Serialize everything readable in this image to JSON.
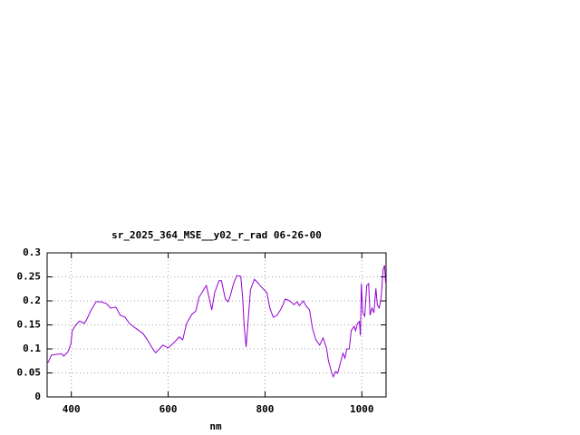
{
  "chart_data": {
    "type": "line",
    "title": "sr_2025_364_MSE__y02_r_rad 06-26-00",
    "x_label": "nm",
    "x": [
      350,
      352,
      359,
      380,
      384,
      393,
      399,
      402,
      410,
      417,
      427,
      432,
      440,
      451,
      462,
      473,
      481,
      492,
      501,
      511,
      520,
      533,
      548,
      557,
      567,
      574,
      582,
      589,
      600,
      612,
      623,
      630,
      638,
      649,
      657,
      664,
      675,
      679,
      685,
      690,
      696,
      705,
      710,
      718,
      724,
      729,
      735,
      742,
      750,
      754,
      757,
      761,
      765,
      770,
      778,
      785,
      795,
      804,
      810,
      817,
      825,
      834,
      842,
      851,
      860,
      866,
      871,
      879,
      885,
      892,
      898,
      905,
      913,
      920,
      927,
      931,
      937,
      941,
      946,
      950,
      956,
      961,
      965,
      969,
      974,
      978,
      984,
      987,
      991,
      995,
      997,
      999,
      1002,
      1006,
      1010,
      1014,
      1017,
      1021,
      1025,
      1029,
      1032,
      1036,
      1040,
      1044,
      1047,
      1049
    ],
    "values": [
      0.07,
      0.072,
      0.087,
      0.09,
      0.085,
      0.094,
      0.11,
      0.138,
      0.151,
      0.158,
      0.153,
      0.162,
      0.179,
      0.198,
      0.198,
      0.194,
      0.185,
      0.187,
      0.17,
      0.166,
      0.153,
      0.143,
      0.132,
      0.119,
      0.102,
      0.092,
      0.1,
      0.108,
      0.102,
      0.113,
      0.125,
      0.119,
      0.153,
      0.172,
      0.179,
      0.208,
      0.226,
      0.232,
      0.204,
      0.181,
      0.217,
      0.242,
      0.242,
      0.204,
      0.198,
      0.213,
      0.236,
      0.253,
      0.251,
      0.204,
      0.147,
      0.104,
      0.157,
      0.223,
      0.245,
      0.238,
      0.226,
      0.217,
      0.185,
      0.166,
      0.17,
      0.185,
      0.204,
      0.2,
      0.192,
      0.198,
      0.19,
      0.2,
      0.189,
      0.181,
      0.143,
      0.119,
      0.108,
      0.123,
      0.102,
      0.075,
      0.053,
      0.042,
      0.053,
      0.049,
      0.072,
      0.091,
      0.081,
      0.1,
      0.1,
      0.138,
      0.147,
      0.138,
      0.153,
      0.157,
      0.128,
      0.236,
      0.175,
      0.168,
      0.232,
      0.236,
      0.17,
      0.185,
      0.175,
      0.226,
      0.191,
      0.185,
      0.209,
      0.266,
      0.274,
      0.238
    ],
    "color": "#9400d3",
    "xlim": [
      350,
      1050
    ],
    "xticks": [
      400,
      600,
      800,
      1000
    ],
    "ylim": [
      0,
      0.3
    ],
    "yticks": [
      0,
      0.05,
      0.1,
      0.15,
      0.2,
      0.25,
      0.3
    ],
    "grid": true
  }
}
